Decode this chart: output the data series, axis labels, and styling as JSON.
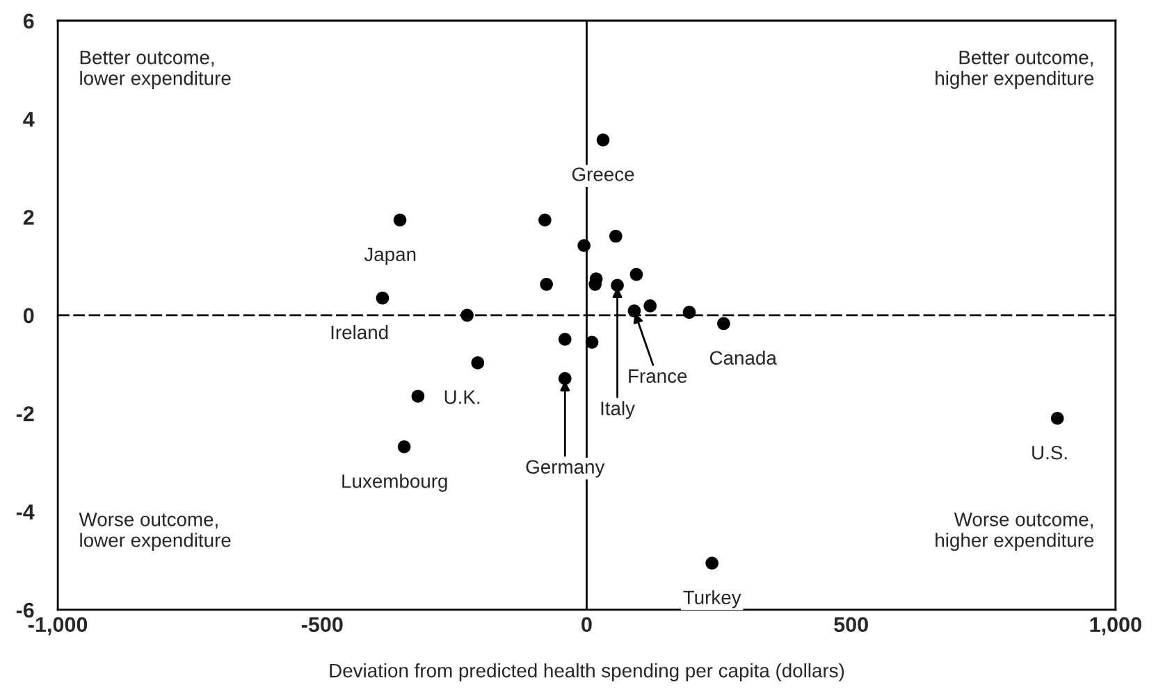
{
  "chart_data": {
    "type": "scatter",
    "xlabel": "Deviation from predicted health spending per capita (dollars)",
    "xlim": [
      -1000,
      1000
    ],
    "ylim": [
      -6,
      6
    ],
    "xticks": [
      {
        "value": -1000,
        "label": "-1,000"
      },
      -500,
      0,
      500,
      {
        "value": 1000,
        "label": "1,000"
      }
    ],
    "yticks": [
      -6,
      -4,
      -2,
      0,
      2,
      4,
      6
    ],
    "grid": false,
    "marker": "circle",
    "series": [
      {
        "color": "#000000",
        "x": [
          31,
          -353,
          -79,
          55,
          -5,
          -76,
          18,
          16,
          58,
          94,
          120,
          90,
          194,
          259,
          -386,
          -226,
          -41,
          10,
          -206,
          -41,
          -319,
          -345,
          890,
          237
        ],
        "values": [
          3.57,
          1.94,
          1.94,
          1.61,
          1.42,
          0.63,
          0.74,
          0.63,
          0.61,
          0.83,
          0.19,
          0.09,
          0.06,
          -0.17,
          0.35,
          0,
          -0.49,
          -0.55,
          -0.97,
          -1.29,
          -1.65,
          -2.68,
          -2.1,
          -5.05
        ]
      }
    ],
    "ref_lines": [
      {
        "axis": "x",
        "value": 0,
        "color": "#000000"
      },
      {
        "axis": "y",
        "value": 0,
        "color": "#000000",
        "line_style": "dashed"
      }
    ],
    "annotations": [
      "Better outcome,\nlower expenditure",
      "Better outcome,\nhigher expenditure",
      "Worse outcome,\nlower expenditure",
      "Worse outcome,\nhigher expenditure",
      {
        "text": "Greece",
        "x": 31,
        "y": 3.57
      },
      {
        "text": "Japan",
        "x": -353,
        "y": 1.94
      },
      {
        "text": "Ireland",
        "x": -386,
        "y": 0.35
      },
      {
        "text": "U.K.",
        "x": -206,
        "y": -0.97
      },
      {
        "text": "Luxembourg",
        "x": -345,
        "y": -2.68
      },
      {
        "text": "Germany",
        "x": -41,
        "y": -1.29
      },
      {
        "text": "Italy",
        "x": 58,
        "y": 0.61
      },
      {
        "text": "France",
        "x": 90,
        "y": 0.09
      },
      {
        "text": "Canada",
        "x": 259,
        "y": -0.17
      },
      {
        "text": "U.S.",
        "x": 890,
        "y": -2.1
      },
      {
        "text": "Turkey",
        "x": 237,
        "y": -5.05
      }
    ]
  }
}
